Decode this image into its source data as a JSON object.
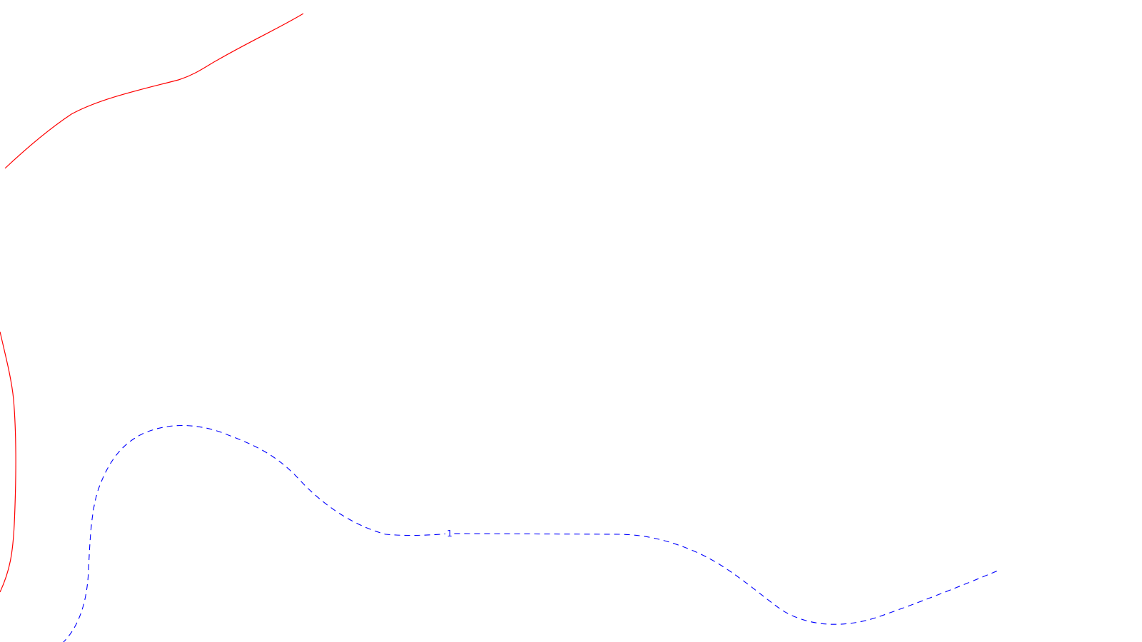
{
  "curves": {
    "red": {
      "style": "solid",
      "color": "#ff0000"
    },
    "blue": {
      "style": "dashed",
      "color": "#0000ff",
      "label": "1"
    }
  }
}
